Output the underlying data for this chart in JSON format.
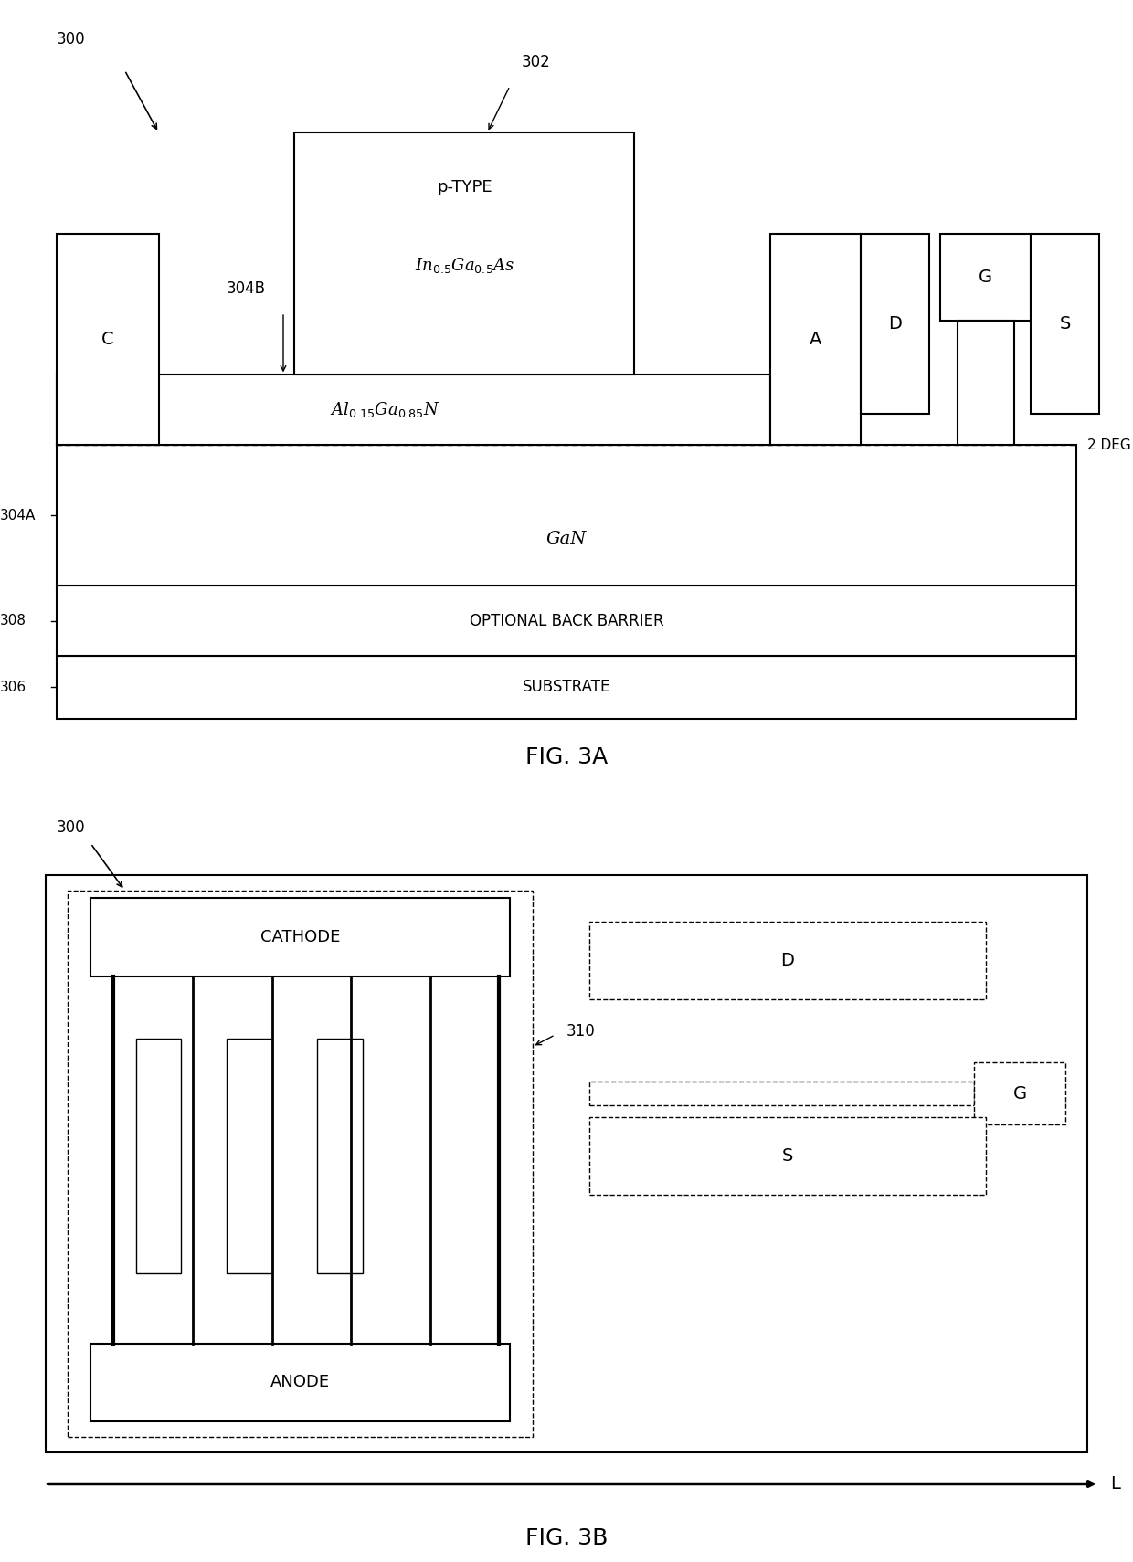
{
  "bg_color": "#ffffff",
  "fig_width": 12.4,
  "fig_height": 17.1,
  "fig3a": {
    "title": "FIG. 3A",
    "label_300": "300",
    "label_302": "302",
    "label_304A": "304A",
    "label_304B": "304B",
    "label_308": "308",
    "label_306": "306",
    "label_2DEG": "2 DEG",
    "text_GaN": "GaN",
    "text_barrier": "OPTIONAL BACK BARRIER",
    "text_substrate": "SUBSTRATE",
    "label_C": "C",
    "label_A": "A",
    "label_D": "D",
    "label_G": "G",
    "label_S": "S"
  },
  "fig3b": {
    "title": "FIG. 3B",
    "label_300": "300",
    "label_310": "310",
    "text_cathode": "CATHODE",
    "text_anode": "ANODE",
    "label_D": "D",
    "label_G": "G",
    "label_S": "S",
    "label_L": "L"
  }
}
